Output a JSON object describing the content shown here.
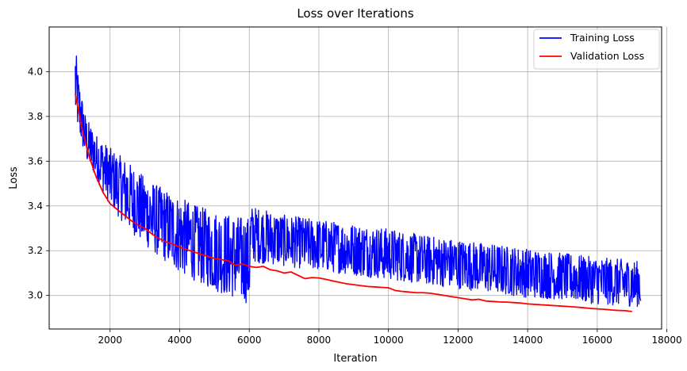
{
  "chart_data": {
    "type": "line",
    "title": "Loss over Iterations",
    "xlabel": "Iteration",
    "ylabel": "Loss",
    "xlim": [
      250,
      17850
    ],
    "ylim": [
      2.85,
      4.2
    ],
    "xticks": [
      2000,
      4000,
      6000,
      8000,
      10000,
      12000,
      14000,
      16000,
      18000
    ],
    "yticks": [
      3.0,
      3.2,
      3.4,
      3.6,
      3.8,
      4.0
    ],
    "grid": true,
    "legend_position": "upper-right",
    "series": [
      {
        "name": "Training Loss",
        "color": "#0000ff",
        "style": "noisy-band",
        "x": [
          1000,
          1100,
          1300,
          1600,
          2000,
          2500,
          3000,
          3500,
          4000,
          4500,
          5000,
          5500,
          6000,
          6050,
          7000,
          8000,
          9000,
          10000,
          11000,
          12000,
          13000,
          14000,
          15000,
          16000,
          17000,
          17250
        ],
        "upper": [
          4.12,
          3.97,
          3.8,
          3.72,
          3.66,
          3.6,
          3.53,
          3.48,
          3.44,
          3.4,
          3.38,
          3.36,
          3.35,
          3.4,
          3.36,
          3.34,
          3.32,
          3.3,
          3.27,
          3.25,
          3.23,
          3.21,
          3.19,
          3.17,
          3.16,
          3.15
        ],
        "lower": [
          3.78,
          3.72,
          3.6,
          3.52,
          3.4,
          3.3,
          3.22,
          3.16,
          3.1,
          3.06,
          3.02,
          2.99,
          2.96,
          3.15,
          3.13,
          3.11,
          3.09,
          3.07,
          3.05,
          3.03,
          3.01,
          2.99,
          2.98,
          2.96,
          2.95,
          2.95
        ]
      },
      {
        "name": "Validation Loss",
        "color": "#ff0000",
        "x": [
          1000,
          1200,
          1400,
          1600,
          1800,
          2000,
          2200,
          2400,
          2600,
          2800,
          3000,
          3200,
          3400,
          3600,
          3800,
          4000,
          4200,
          4400,
          4600,
          4800,
          5000,
          5200,
          5400,
          5600,
          5800,
          6000,
          6200,
          6400,
          6600,
          6800,
          7000,
          7200,
          7400,
          7600,
          7800,
          8000,
          8200,
          8400,
          8600,
          8800,
          9000,
          9200,
          9400,
          9600,
          9800,
          10000,
          10200,
          10400,
          10600,
          10800,
          11000,
          11200,
          11400,
          11600,
          11800,
          12000,
          12200,
          12400,
          12600,
          12800,
          13000,
          13200,
          13400,
          13600,
          13800,
          14000,
          14200,
          14400,
          14600,
          14800,
          15000,
          15200,
          15400,
          15600,
          15800,
          16000,
          16200,
          16400,
          16600,
          16800,
          17000
        ],
        "values": [
          3.9,
          3.74,
          3.62,
          3.53,
          3.46,
          3.41,
          3.385,
          3.36,
          3.335,
          3.315,
          3.3,
          3.275,
          3.255,
          3.24,
          3.23,
          3.215,
          3.205,
          3.195,
          3.185,
          3.175,
          3.165,
          3.16,
          3.155,
          3.135,
          3.14,
          3.13,
          3.125,
          3.13,
          3.115,
          3.11,
          3.1,
          3.105,
          3.09,
          3.075,
          3.08,
          3.078,
          3.072,
          3.065,
          3.058,
          3.052,
          3.048,
          3.044,
          3.04,
          3.038,
          3.036,
          3.034,
          3.022,
          3.018,
          3.015,
          3.012,
          3.012,
          3.01,
          3.005,
          3.0,
          2.995,
          2.99,
          2.985,
          2.98,
          2.983,
          2.975,
          2.973,
          2.971,
          2.97,
          2.968,
          2.966,
          2.962,
          2.96,
          2.958,
          2.956,
          2.954,
          2.952,
          2.95,
          2.948,
          2.945,
          2.942,
          2.94,
          2.938,
          2.935,
          2.933,
          2.932,
          2.928
        ]
      }
    ]
  }
}
